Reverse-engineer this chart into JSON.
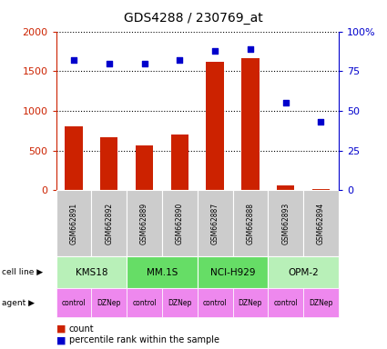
{
  "title": "GDS4288 / 230769_at",
  "samples": [
    "GSM662891",
    "GSM662892",
    "GSM662889",
    "GSM662890",
    "GSM662887",
    "GSM662888",
    "GSM662893",
    "GSM662894"
  ],
  "bar_values": [
    800,
    670,
    560,
    700,
    1620,
    1660,
    60,
    20
  ],
  "scatter_values": [
    82,
    80,
    80,
    82,
    88,
    89,
    55,
    43
  ],
  "bar_color": "#cc2200",
  "scatter_color": "#0000cc",
  "ylim_left": [
    0,
    2000
  ],
  "ylim_right": [
    0,
    100
  ],
  "yticks_left": [
    0,
    500,
    1000,
    1500,
    2000
  ],
  "yticks_right": [
    0,
    25,
    50,
    75,
    100
  ],
  "cell_lines": [
    {
      "label": "KMS18",
      "span": [
        0,
        2
      ],
      "color": "#b8f0b8"
    },
    {
      "label": "MM.1S",
      "span": [
        2,
        4
      ],
      "color": "#66dd66"
    },
    {
      "label": "NCI-H929",
      "span": [
        4,
        6
      ],
      "color": "#66dd66"
    },
    {
      "label": "OPM-2",
      "span": [
        6,
        8
      ],
      "color": "#b8f0b8"
    }
  ],
  "agents": [
    "control",
    "DZNep",
    "control",
    "DZNep",
    "control",
    "DZNep",
    "control",
    "DZNep"
  ],
  "agent_color": "#ee88ee",
  "sample_bg_color": "#cccccc",
  "legend_count_color": "#cc2200",
  "legend_scatter_color": "#0000cc",
  "background_color": "#ffffff"
}
